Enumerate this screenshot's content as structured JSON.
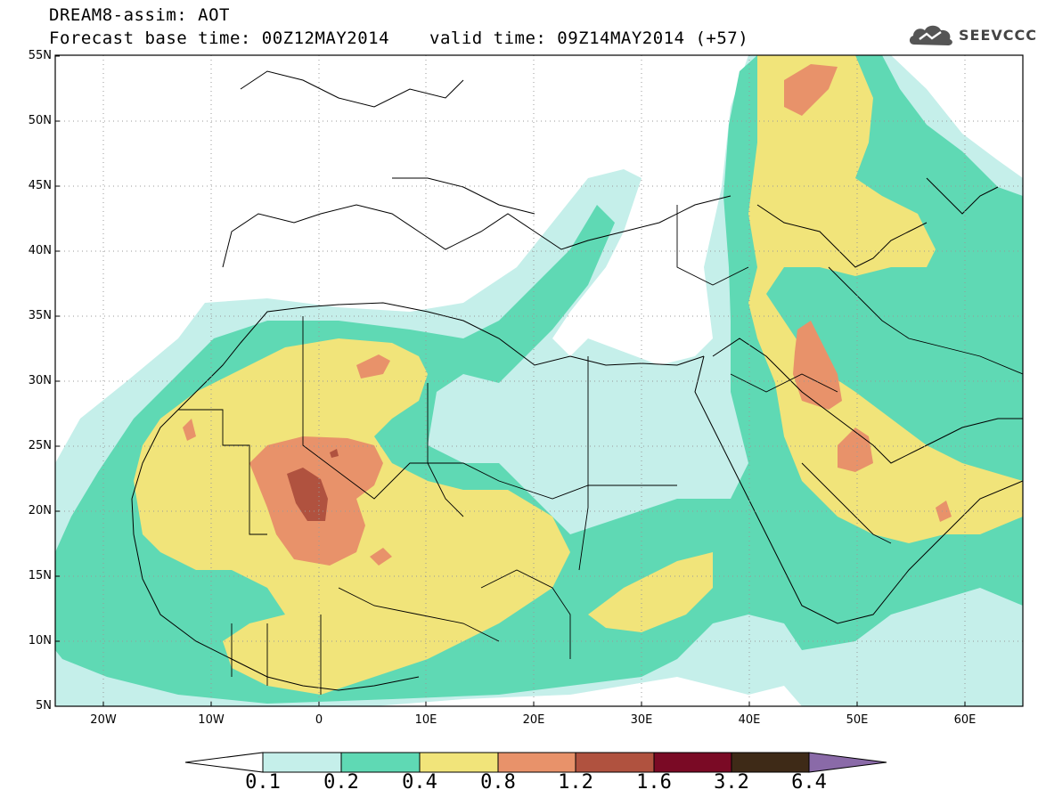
{
  "header": {
    "line1": "DREAM8-assim: AOT",
    "line2": "Forecast base time: 00Z12MAY2014",
    "line3": "valid time: 09Z14MAY2014 (+57)"
  },
  "logo": {
    "text": "SEEVCCC",
    "icon": "cloud-logo-icon"
  },
  "map": {
    "lat_labels": [
      "55N",
      "50N",
      "45N",
      "40N",
      "35N",
      "30N",
      "25N",
      "20N",
      "15N",
      "10N",
      "5N"
    ],
    "lon_labels": [
      "20W",
      "10W",
      "0",
      "10E",
      "20E",
      "30E",
      "40E",
      "50E",
      "60E"
    ],
    "extent": {
      "lon_min": -25,
      "lon_max": 65,
      "lat_min": 5,
      "lat_max": 55
    }
  },
  "colorbar": {
    "labels": [
      "0.1",
      "0.2",
      "0.4",
      "0.8",
      "1.2",
      "1.6",
      "3.2",
      "6.4"
    ],
    "colors": [
      "#ffffff",
      "#c5efea",
      "#5fd9b4",
      "#f1e47a",
      "#e8926a",
      "#b0523f",
      "#7a0a25",
      "#3e2a17",
      "#8a6aa8"
    ]
  }
}
